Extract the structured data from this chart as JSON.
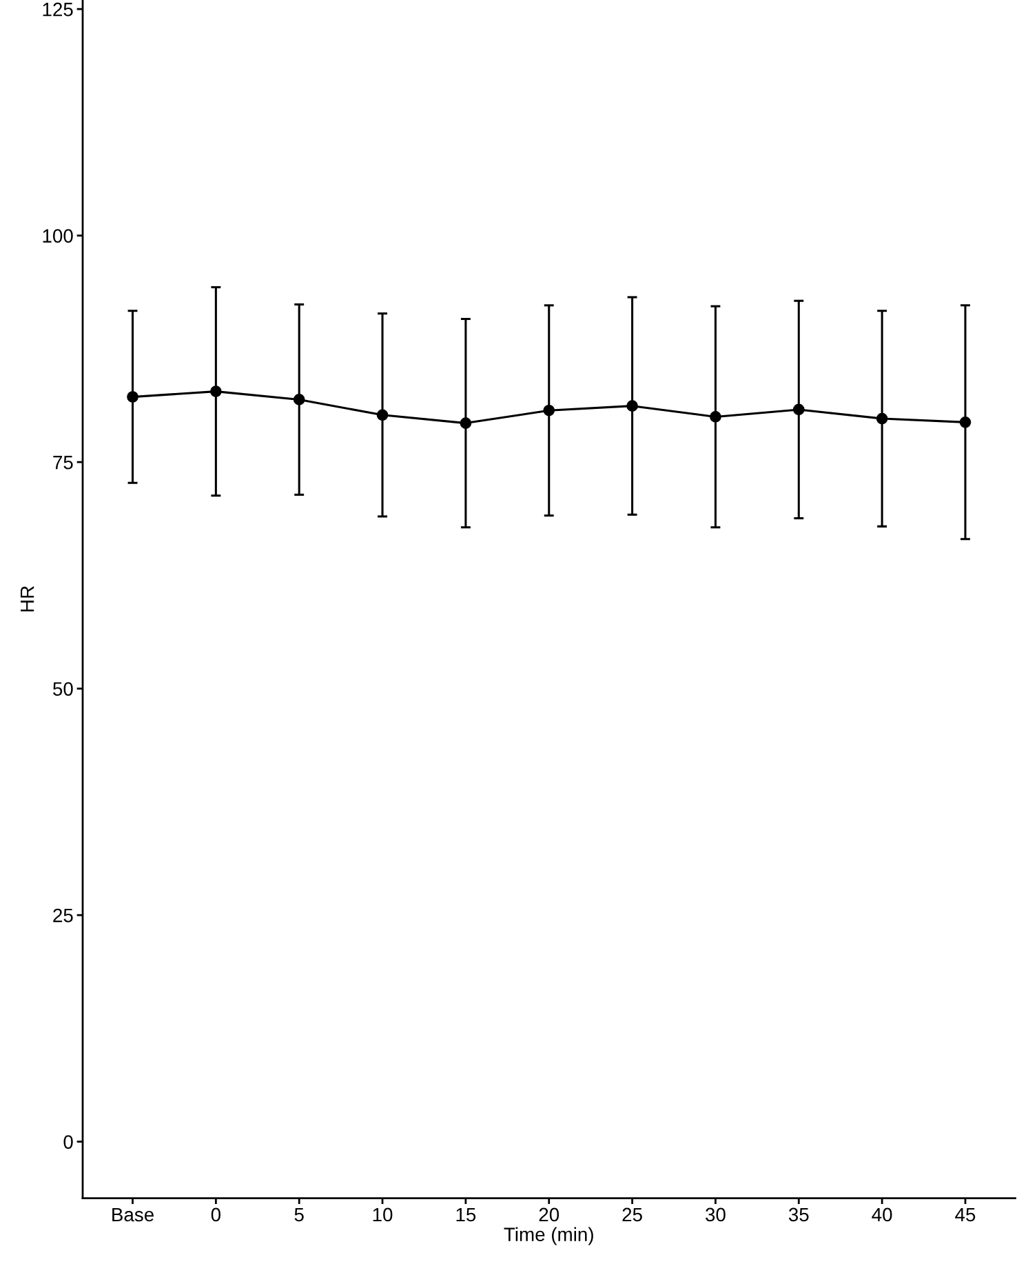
{
  "chart_data": {
    "type": "line",
    "xlabel": "Time (min)",
    "ylabel": "HR",
    "categories": [
      "Base",
      "0",
      "5",
      "10",
      "15",
      "20",
      "25",
      "30",
      "35",
      "40",
      "45"
    ],
    "series": [
      {
        "color": "#000000",
        "values": [
          82.2,
          82.8,
          81.9,
          80.2,
          79.3,
          80.7,
          81.2,
          80.0,
          80.8,
          79.8,
          79.4
        ],
        "errors": [
          9.5,
          11.5,
          10.5,
          11.2,
          11.5,
          11.6,
          12.0,
          12.2,
          12.0,
          11.9,
          12.9
        ]
      }
    ],
    "ylim": [
      -6.25,
      126
    ],
    "yticks": [
      0,
      25,
      50,
      75,
      100,
      125
    ],
    "grid": false,
    "legend": false,
    "marker": "circle",
    "line_style": "solid"
  }
}
